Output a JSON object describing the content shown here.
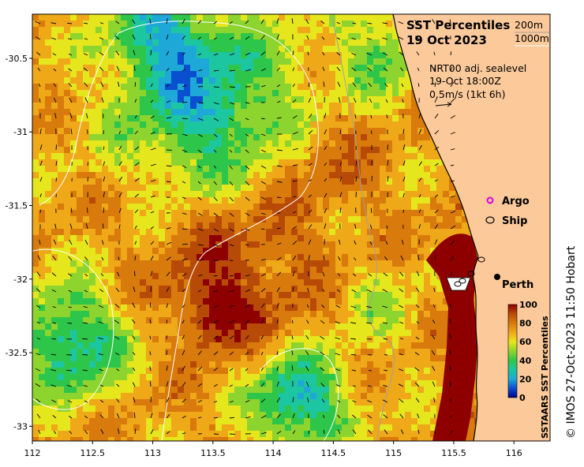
{
  "title": {
    "line1": "SST Percentiles",
    "line2": "19 Oct 2023"
  },
  "contour_key": {
    "c200": "200m",
    "c1000": "1000m"
  },
  "current_info": {
    "line1": "NRT00 adj. sealevel",
    "line2": "19-Oct 18:00Z",
    "line3": "0.5m/s (1kt 6h)"
  },
  "legend": {
    "argo": "Argo",
    "ship": "Ship",
    "perth": "Perth"
  },
  "colorbar": {
    "label": "SSTAARS SST Percentiles",
    "ticks": [
      "100",
      "80",
      "60",
      "40",
      "20",
      "0"
    ]
  },
  "credit": "© IMOS 27-Oct-2023 11:50 Hobart",
  "colors": {
    "land": "#FBC99A",
    "p0": "#00008B",
    "p10": "#0A4FD0",
    "p20": "#1EA8D8",
    "p30": "#1CC6A0",
    "p40": "#2EC64A",
    "p50": "#8ED42E",
    "p60": "#E6E61C",
    "p70": "#EFA818",
    "p80": "#D97A0C",
    "p90": "#B84A08",
    "p100": "#8E0000",
    "argo": "#E000E0"
  },
  "axes": {
    "x_ticks": [
      "112",
      "112.5",
      "113",
      "113.5",
      "114",
      "114.5",
      "115",
      "115.5",
      "116"
    ],
    "y_ticks": [
      "-30.5",
      "-31",
      "-31.5",
      "-32",
      "-32.5",
      "-33"
    ]
  }
}
